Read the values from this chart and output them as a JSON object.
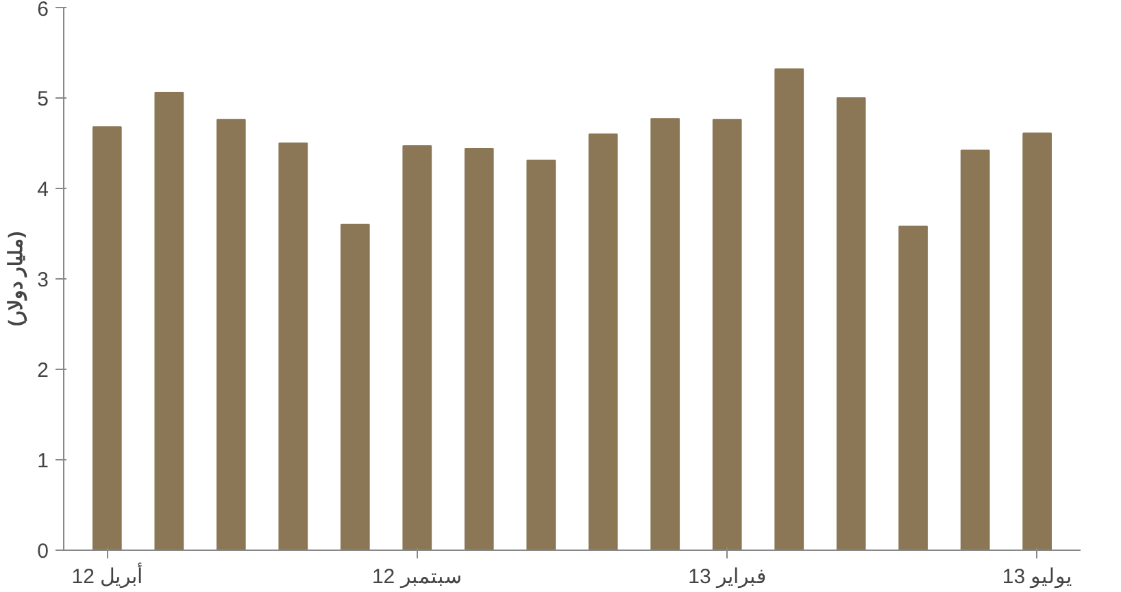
{
  "chart_data": {
    "type": "bar",
    "ylabel": "(مليار دولار)",
    "categories": [
      "أبريل 12",
      null,
      null,
      null,
      null,
      "سبتمبر 12",
      null,
      null,
      null,
      null,
      "فبراير 13",
      null,
      null,
      null,
      null,
      "يوليو 13"
    ],
    "values": [
      4.68,
      5.06,
      4.76,
      4.5,
      3.6,
      4.47,
      4.44,
      4.31,
      4.6,
      4.77,
      4.76,
      5.32,
      5.0,
      3.58,
      4.42,
      4.61
    ],
    "color": "#8b7755",
    "ylim": [
      0,
      6
    ],
    "yticks": [
      0,
      1,
      2,
      3,
      4,
      5,
      6
    ],
    "grid": false
  }
}
